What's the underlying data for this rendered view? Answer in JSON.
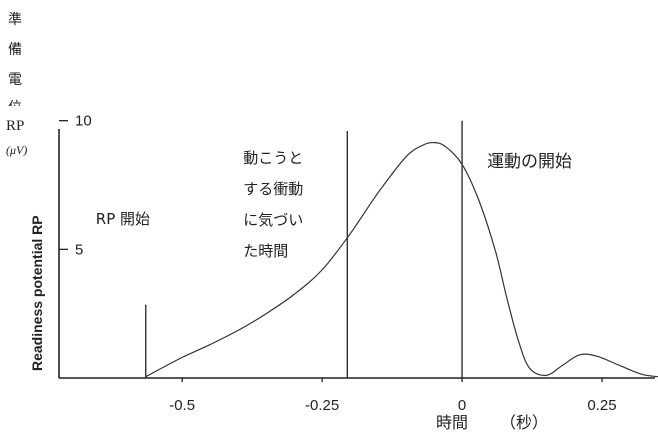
{
  "chart_data": {
    "type": "line",
    "ylabel_vertical_jp": [
      "準",
      "備",
      "電",
      "位"
    ],
    "ylabel_abbrev": "RP",
    "ylabel_unit": "(μV)",
    "ylabel": "Readiness potential RP",
    "xlabel": "時間",
    "xlabel_unit": "（秒）",
    "x_ticks": [
      {
        "value": -0.5,
        "label": "-0.5"
      },
      {
        "value": -0.25,
        "label": "-0.25"
      },
      {
        "value": 0,
        "label": "0"
      },
      {
        "value": 0.25,
        "label": "0.25"
      }
    ],
    "y_ticks": [
      {
        "value": 5,
        "label": "5"
      },
      {
        "value": 10,
        "label": "10"
      }
    ],
    "xlim": [
      -0.72,
      0.35
    ],
    "ylim": [
      0,
      10.5
    ],
    "series": [
      {
        "x": [
          -0.565,
          -0.5,
          -0.45,
          -0.4,
          -0.35,
          -0.3,
          -0.25,
          -0.2,
          -0.15,
          -0.1,
          -0.07,
          -0.05,
          -0.03,
          0.0,
          0.03,
          0.06,
          0.08,
          0.1,
          0.12,
          0.15,
          0.18,
          0.21,
          0.24,
          0.28,
          0.32,
          0.35
        ],
        "y": [
          0.05,
          0.8,
          1.3,
          1.85,
          2.5,
          3.25,
          4.2,
          5.6,
          7.2,
          8.6,
          9.05,
          9.15,
          9.0,
          8.3,
          6.9,
          4.9,
          3.1,
          1.5,
          0.4,
          0.1,
          0.5,
          0.9,
          0.85,
          0.5,
          0.15,
          0.05
        ]
      }
    ],
    "markers": [
      {
        "x": -0.565,
        "y_top": 2.85,
        "label_lines": [
          "RP 開始"
        ]
      },
      {
        "x": -0.205,
        "y_top": 9.6,
        "label_lines": [
          "動こうと",
          "する衝動",
          "に気づい",
          "た時間"
        ]
      },
      {
        "x": 0.0,
        "y_top": 10.0,
        "label_lines": [
          "運動の開始"
        ]
      }
    ]
  }
}
